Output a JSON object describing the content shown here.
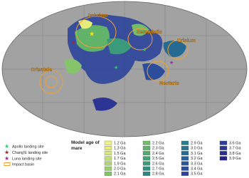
{
  "map": {
    "basins": [
      "Imbrium",
      "Serenitatis",
      "Crisium",
      "Nectaris",
      "Orientale"
    ]
  },
  "legend": {
    "sites": [
      "Apollo landing site",
      "Chang'E landing site",
      "Luna landing site",
      "Impact basin"
    ],
    "title": "Model age of mare",
    "ages": [
      {
        "label": "1.2 Ga",
        "color": "#f2f08a"
      },
      {
        "label": "1.3 Ga",
        "color": "#e6ec7a"
      },
      {
        "label": "1.5 Ga",
        "color": "#d4e680"
      },
      {
        "label": "1.7 Ga",
        "color": "#c2de7a"
      },
      {
        "label": "1.9 Ga",
        "color": "#aed676"
      },
      {
        "label": "2.0 Ga",
        "color": "#9acd70"
      },
      {
        "label": "2.1 Ga",
        "color": "#86c46c"
      },
      {
        "label": "2.2 Ga",
        "color": "#74bb6a"
      },
      {
        "label": "2.3 Ga",
        "color": "#62b36a"
      },
      {
        "label": "2.4 Ga",
        "color": "#52aa6e"
      },
      {
        "label": "2.5 Ga",
        "color": "#44a274"
      },
      {
        "label": "2.6 Ga",
        "color": "#3a9a7a"
      },
      {
        "label": "2.7 Ga",
        "color": "#329080"
      },
      {
        "label": "2.8 Ga",
        "color": "#2c8786"
      },
      {
        "label": "2.9 Ga",
        "color": "#287e8c"
      },
      {
        "label": "3.0 Ga",
        "color": "#267490"
      },
      {
        "label": "3.1 Ga",
        "color": "#266a94"
      },
      {
        "label": "3.2 Ga",
        "color": "#286098"
      },
      {
        "label": "3.3 Ga",
        "color": "#2a569a"
      },
      {
        "label": "3.4 Ga",
        "color": "#2c4c9c"
      },
      {
        "label": "3.5 Ga",
        "color": "#2e449c"
      },
      {
        "label": "3.6 Ga",
        "color": "#2e3c9a"
      },
      {
        "label": "3.7 Ga",
        "color": "#2c3494"
      },
      {
        "label": "3.8 Ga",
        "color": "#2a2c8c"
      },
      {
        "label": "3.9 Ga",
        "color": "#262482"
      }
    ]
  }
}
